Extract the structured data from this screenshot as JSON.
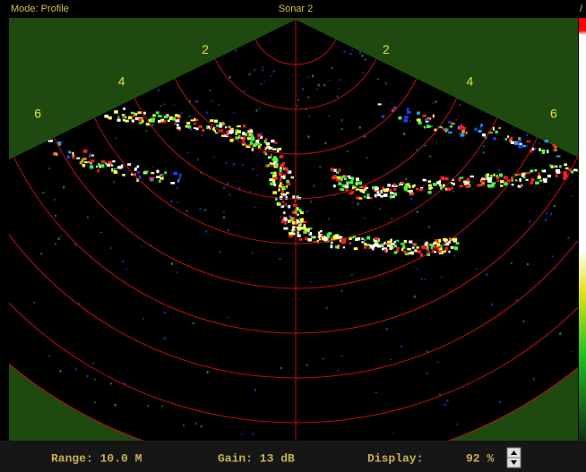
{
  "window": {
    "mode": "Mode: Profile",
    "title": "Sonar 2",
    "corner": "/"
  },
  "range_labels": [
    "2",
    "4",
    "6"
  ],
  "status": {
    "range": "Range: 10.0 M",
    "gain": "Gain: 13 dB",
    "display_label": "Display:",
    "display_value": "92 %"
  }
}
